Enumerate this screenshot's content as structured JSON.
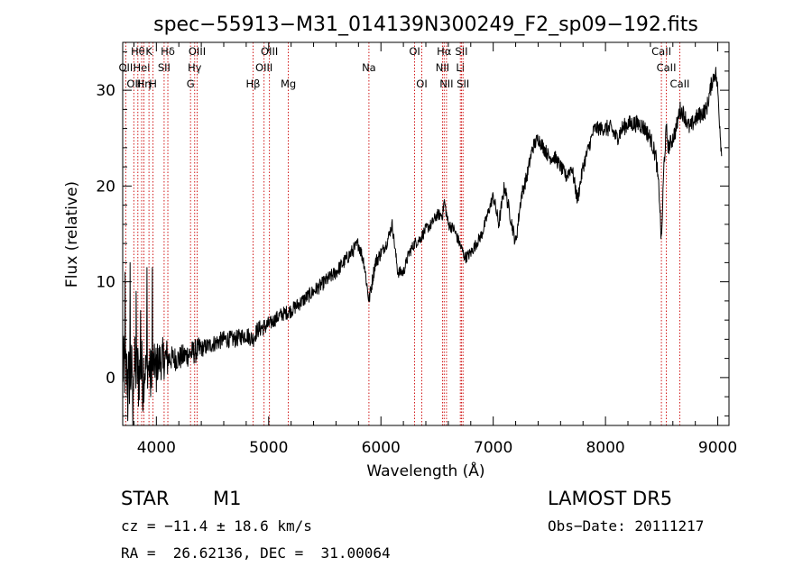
{
  "chart_data": {
    "type": "line",
    "title": "spec−55913−M31_014139N300249_F2_sp09−192.fits",
    "xlabel": "Wavelength (Å)",
    "ylabel": "Flux (relative)",
    "xlim": [
      3700,
      9100
    ],
    "ylim": [
      -5,
      35
    ],
    "x_ticks": [
      4000,
      5000,
      6000,
      7000,
      8000,
      9000
    ],
    "y_ticks": [
      0,
      10,
      20,
      30
    ],
    "grid": false,
    "legend": "none",
    "line_color": "#000000",
    "marker_color": "#cc0000",
    "x_knots": [
      3700,
      3760,
      3800,
      3850,
      3900,
      3950,
      4000,
      4050,
      4100,
      4150,
      4200,
      4300,
      4400,
      4500,
      4600,
      4700,
      4800,
      4860,
      4900,
      5000,
      5100,
      5200,
      5300,
      5400,
      5500,
      5600,
      5700,
      5800,
      5850,
      5893,
      5950,
      6000,
      6050,
      6100,
      6150,
      6200,
      6250,
      6300,
      6350,
      6400,
      6450,
      6500,
      6550,
      6563,
      6600,
      6650,
      6700,
      6750,
      6800,
      6850,
      6900,
      6950,
      7000,
      7050,
      7100,
      7150,
      7200,
      7250,
      7300,
      7350,
      7400,
      7450,
      7500,
      7550,
      7600,
      7650,
      7700,
      7750,
      7800,
      7850,
      7900,
      7950,
      8000,
      8050,
      8100,
      8150,
      8200,
      8250,
      8300,
      8350,
      8400,
      8450,
      8480,
      8498,
      8520,
      8542,
      8560,
      8600,
      8630,
      8662,
      8700,
      8750,
      8800,
      8850,
      8900,
      8950,
      8980,
      9000,
      9030
    ],
    "y_knots": [
      1,
      0,
      1,
      0.5,
      1,
      1,
      1.5,
      2,
      2,
      2,
      2,
      2.5,
      3,
      3.5,
      4,
      4,
      4.5,
      4,
      5,
      5.5,
      6.5,
      7,
      8,
      9,
      10,
      11,
      12.5,
      14,
      12,
      8,
      12,
      13,
      14,
      16,
      11,
      11,
      13,
      14,
      14.5,
      15.5,
      16,
      17,
      17,
      18.5,
      16,
      15.5,
      14,
      12.5,
      13,
      14,
      15,
      17,
      19,
      16,
      20,
      17,
      14,
      19,
      21,
      24,
      25,
      24,
      23,
      23,
      22,
      21,
      22,
      18.5,
      22,
      24,
      26,
      26,
      26,
      26,
      25,
      26,
      26.5,
      26.5,
      26.5,
      26,
      25,
      23,
      19,
      14,
      22,
      26,
      24,
      25,
      26,
      28,
      27.5,
      26,
      27,
      27.5,
      28,
      31,
      32,
      30,
      24
    ],
    "noise_amplitude_ranges": [
      [
        3700,
        3900,
        3.5
      ],
      [
        3900,
        4100,
        2.2
      ],
      [
        4100,
        4400,
        1.3
      ],
      [
        4400,
        5000,
        0.9
      ],
      [
        5000,
        6000,
        0.75
      ],
      [
        6000,
        7000,
        0.6
      ],
      [
        7000,
        8000,
        0.75
      ],
      [
        8000,
        9100,
        0.9
      ]
    ],
    "noise_spikes": [
      [
        3720,
        11
      ],
      [
        3745,
        -4.5
      ],
      [
        3765,
        12
      ],
      [
        3790,
        -5
      ],
      [
        3820,
        9
      ],
      [
        3840,
        -3
      ],
      [
        3860,
        7
      ],
      [
        3880,
        -3.5
      ],
      [
        3915,
        11.5
      ],
      [
        3950,
        -2
      ],
      [
        3965,
        11.5
      ],
      [
        4000,
        -1.5
      ],
      [
        4060,
        1
      ]
    ],
    "lines": [
      {
        "wavelength": 3727,
        "label": "OII",
        "row": 1
      },
      {
        "wavelength": 3799,
        "label": "OII",
        "row": 2
      },
      {
        "wavelength": 3835,
        "label": "Hθ",
        "row": 0
      },
      {
        "wavelength": 3869,
        "label": "HeI",
        "row": 1
      },
      {
        "wavelength": 3889,
        "label": "Hη",
        "row": 2
      },
      {
        "wavelength": 3934,
        "label": "K",
        "row": 0
      },
      {
        "wavelength": 3970,
        "label": "H",
        "row": 2
      },
      {
        "wavelength": 4069,
        "label": "SII",
        "row": 1
      },
      {
        "wavelength": 4102,
        "label": "Hδ",
        "row": 0
      },
      {
        "wavelength": 4304,
        "label": "G",
        "row": 2
      },
      {
        "wavelength": 4341,
        "label": "Hγ",
        "row": 1
      },
      {
        "wavelength": 4363,
        "label": "OIII",
        "row": 0
      },
      {
        "wavelength": 4861,
        "label": "Hβ",
        "row": 2
      },
      {
        "wavelength": 4959,
        "label": "OIII",
        "row": 1
      },
      {
        "wavelength": 5007,
        "label": "OIII",
        "row": 0
      },
      {
        "wavelength": 5175,
        "label": "Mg",
        "row": 2
      },
      {
        "wavelength": 5893,
        "label": "Na",
        "row": 1
      },
      {
        "wavelength": 6300,
        "label": "OI",
        "row": 0
      },
      {
        "wavelength": 6364,
        "label": "OI",
        "row": 2
      },
      {
        "wavelength": 6548,
        "label": "NII",
        "row": 1
      },
      {
        "wavelength": 6563,
        "label": "Hα",
        "row": 0
      },
      {
        "wavelength": 6584,
        "label": "NII",
        "row": 2
      },
      {
        "wavelength": 6707,
        "label": "Li",
        "row": 1
      },
      {
        "wavelength": 6717,
        "label": "SII",
        "row": 0
      },
      {
        "wavelength": 6731,
        "label": "SII",
        "row": 2
      },
      {
        "wavelength": 8498,
        "label": "CaII",
        "row": 0
      },
      {
        "wavelength": 8542,
        "label": "CaII",
        "row": 1
      },
      {
        "wavelength": 8662,
        "label": "CaII",
        "row": 2
      }
    ]
  },
  "info": {
    "object_type": "STAR",
    "subclass": "M1",
    "survey": "LAMOST DR5",
    "cz": "cz = −11.4 ± 18.6 km/s",
    "obs_date": "Obs−Date: 20111217",
    "coords": "RA =  26.62136, DEC =  31.00064"
  }
}
